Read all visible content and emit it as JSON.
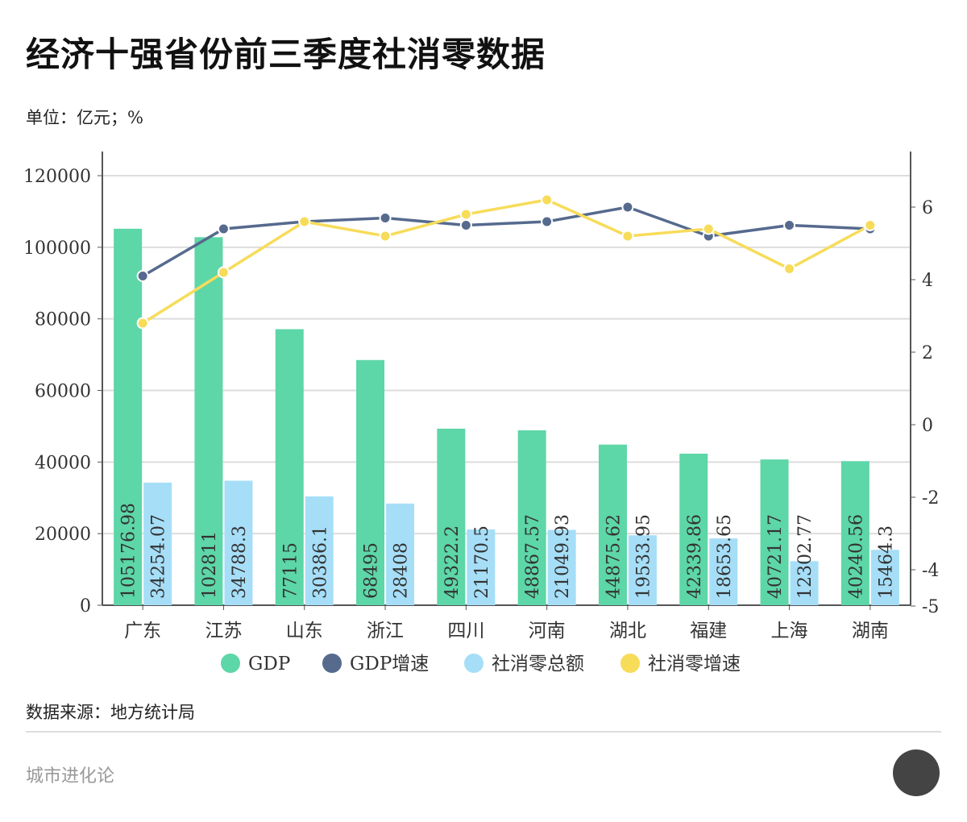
{
  "title": "经济十强省份前三季度社消零数据",
  "unit": "单位：亿元；%",
  "source": "数据来源：地方统计局",
  "footer": "城市进化论",
  "chart_data": {
    "type": "bar+line",
    "categories": [
      "广东",
      "江苏",
      "山东",
      "浙江",
      "四川",
      "河南",
      "湖北",
      "福建",
      "上海",
      "湖南"
    ],
    "left_axis": {
      "ylim": [
        0,
        120000
      ],
      "ticks": [
        0,
        20000,
        40000,
        60000,
        80000,
        100000,
        120000
      ]
    },
    "right_axis": {
      "ylim": [
        -5,
        7
      ],
      "ticks": [
        -5,
        -4,
        -2,
        0,
        2,
        4,
        6
      ]
    },
    "grid": true,
    "legend_position": "bottom",
    "series": [
      {
        "name": "GDP",
        "type": "bar",
        "axis": "left",
        "color": "#5dd6a8",
        "values": [
          105176.98,
          102811,
          77115,
          68495,
          49322.2,
          48867.57,
          44875.62,
          42339.86,
          40721.17,
          40240.56
        ],
        "labels": [
          "105176.98",
          "102811",
          "77115",
          "68495",
          "49322.2",
          "48867.57",
          "44875.62",
          "42339.86",
          "40721.17",
          "40240.56"
        ]
      },
      {
        "name": "GDP增速",
        "type": "line",
        "axis": "right",
        "color": "#566a8e",
        "values": [
          4.1,
          5.4,
          5.6,
          5.7,
          5.5,
          5.6,
          6.0,
          5.2,
          5.5,
          5.4
        ]
      },
      {
        "name": "社消零总额",
        "type": "bar",
        "axis": "left",
        "color": "#a6def8",
        "values": [
          34254.07,
          34788.3,
          30386.1,
          28408,
          21170.5,
          21049.93,
          19533.95,
          18653.65,
          12302.77,
          15464.3
        ],
        "labels": [
          "34254.07",
          "34788.3",
          "30386.1",
          "28408",
          "21170.5",
          "21049.93",
          "19533.95",
          "18653.65",
          "12302.77",
          "15464.3"
        ]
      },
      {
        "name": "社消零增速",
        "type": "line",
        "axis": "right",
        "color": "#f7dc5a",
        "values": [
          2.8,
          4.2,
          5.6,
          5.2,
          5.8,
          6.2,
          5.2,
          5.4,
          4.3,
          5.5
        ]
      }
    ]
  }
}
